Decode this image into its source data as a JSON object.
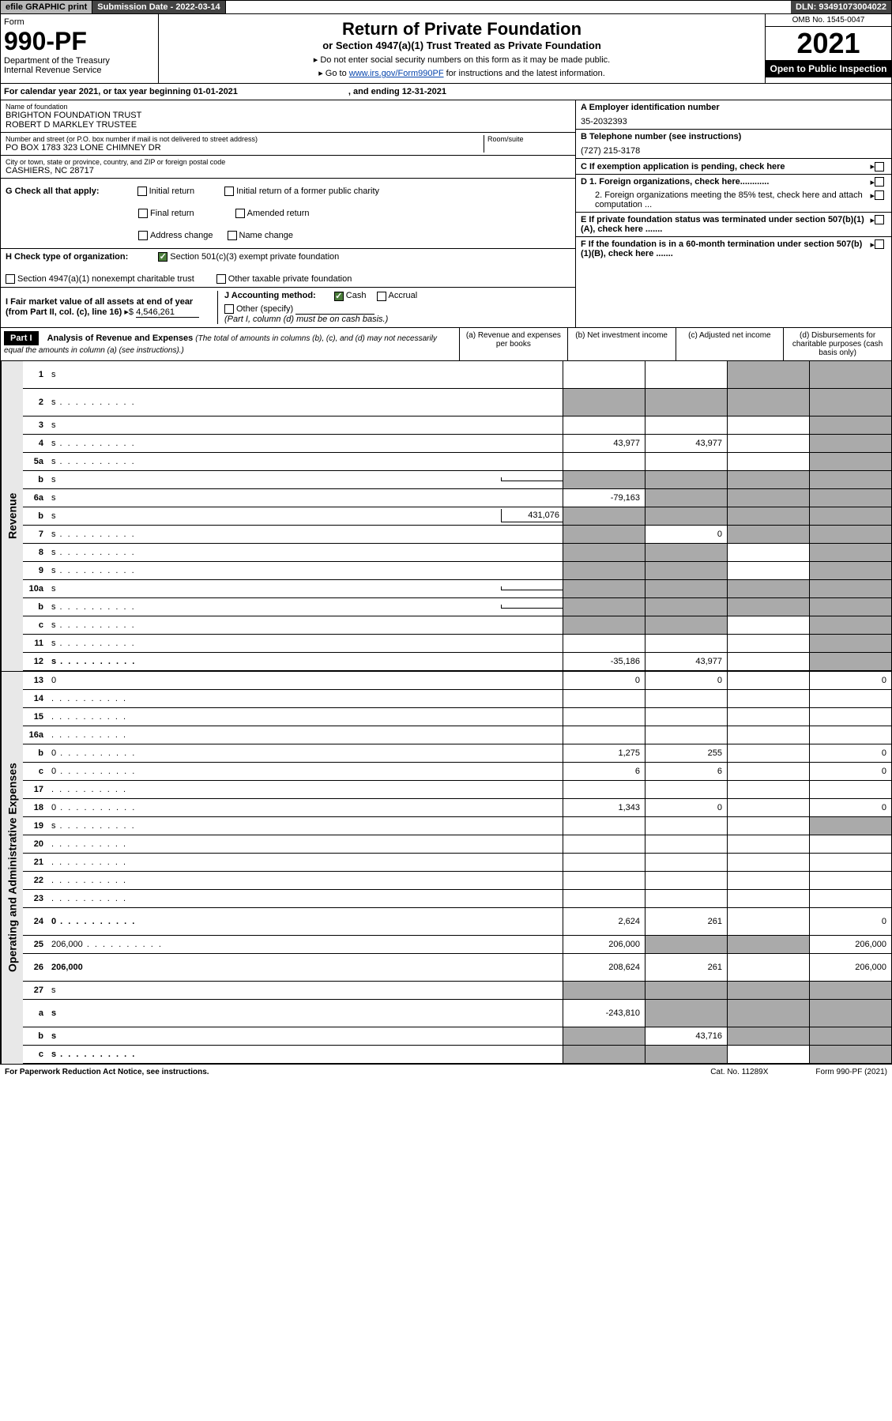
{
  "topBar": {
    "efile": "efile GRAPHIC print",
    "subDate": "Submission Date - 2022-03-14",
    "dln": "DLN: 93491073004022"
  },
  "header": {
    "formWord": "Form",
    "formNum": "990-PF",
    "dept": "Department of the Treasury",
    "irs": "Internal Revenue Service",
    "title": "Return of Private Foundation",
    "subtitle": "or Section 4947(a)(1) Trust Treated as Private Foundation",
    "note1": "▸ Do not enter social security numbers on this form as it may be made public.",
    "note2": "▸ Go to www.irs.gov/Form990PF for instructions and the latest information.",
    "omb": "OMB No. 1545-0047",
    "year": "2021",
    "openPublic": "Open to Public Inspection"
  },
  "calYear": {
    "text": "For calendar year 2021, or tax year beginning 01-01-2021",
    "ending": ", and ending 12-31-2021"
  },
  "info": {
    "nameLabel": "Name of foundation",
    "name1": "BRIGHTON FOUNDATION TRUST",
    "name2": "ROBERT D MARKLEY TRUSTEE",
    "addrLabel": "Number and street (or P.O. box number if mail is not delivered to street address)",
    "addr": "PO BOX 1783 323 LONE CHIMNEY DR",
    "roomLabel": "Room/suite",
    "cityLabel": "City or town, state or province, country, and ZIP or foreign postal code",
    "city": "CASHIERS, NC  28717",
    "einLabel": "A Employer identification number",
    "ein": "35-2032393",
    "telLabel": "B Telephone number (see instructions)",
    "tel": "(727) 215-3178",
    "cLabel": "C If exemption application is pending, check here",
    "d1": "D 1. Foreign organizations, check here............",
    "d2": "2. Foreign organizations meeting the 85% test, check here and attach computation ...",
    "eLabel": "E  If private foundation status was terminated under section 507(b)(1)(A), check here .......",
    "fLabel": "F  If the foundation is in a 60-month termination under section 507(b)(1)(B), check here ......."
  },
  "checks": {
    "gLabel": "G Check all that apply:",
    "initial": "Initial return",
    "initialFormer": "Initial return of a former public charity",
    "final": "Final return",
    "amended": "Amended return",
    "addrChange": "Address change",
    "nameChange": "Name change",
    "hLabel": "H Check type of organization:",
    "h501c3": "Section 501(c)(3) exempt private foundation",
    "h4947": "Section 4947(a)(1) nonexempt charitable trust",
    "hOther": "Other taxable private foundation",
    "iLabel": "I Fair market value of all assets at end of year (from Part II, col. (c), line 16)",
    "iVal": "4,546,261",
    "jLabel": "J Accounting method:",
    "cash": "Cash",
    "accrual": "Accrual",
    "otherSpec": "Other (specify)",
    "jNote": "(Part I, column (d) must be on cash basis.)"
  },
  "partI": {
    "label": "Part I",
    "title": "Analysis of Revenue and Expenses",
    "titleNote": "(The total of amounts in columns (b), (c), and (d) may not necessarily equal the amounts in column (a) (see instructions).)",
    "colA": "(a)   Revenue and expenses per books",
    "colB": "(b)   Net investment income",
    "colC": "(c)   Adjusted net income",
    "colD": "(d)   Disbursements for charitable purposes (cash basis only)"
  },
  "sideLabels": {
    "revenue": "Revenue",
    "expenses": "Operating and Administrative Expenses"
  },
  "rows": [
    {
      "n": "1",
      "d": "s",
      "a": "",
      "b": "",
      "c": "s",
      "tall": true
    },
    {
      "n": "2",
      "d": "s",
      "a": "s",
      "b": "s",
      "c": "s",
      "dots": true,
      "tall": true
    },
    {
      "n": "3",
      "d": "s",
      "a": "",
      "b": "",
      "c": ""
    },
    {
      "n": "4",
      "d": "s",
      "a": "43,977",
      "b": "43,977",
      "c": "",
      "dots": true
    },
    {
      "n": "5a",
      "d": "s",
      "a": "",
      "b": "",
      "c": "",
      "dots": true
    },
    {
      "n": "b",
      "d": "s",
      "a": "s",
      "b": "s",
      "c": "s",
      "sub": ""
    },
    {
      "n": "6a",
      "d": "s",
      "a": "-79,163",
      "b": "s",
      "c": "s"
    },
    {
      "n": "b",
      "d": "s",
      "a": "s",
      "b": "s",
      "c": "s",
      "sub": "431,076"
    },
    {
      "n": "7",
      "d": "s",
      "a": "s",
      "b": "0",
      "c": "s",
      "dots": true
    },
    {
      "n": "8",
      "d": "s",
      "a": "s",
      "b": "s",
      "c": "",
      "dots": true
    },
    {
      "n": "9",
      "d": "s",
      "a": "s",
      "b": "s",
      "c": "",
      "dots": true
    },
    {
      "n": "10a",
      "d": "s",
      "a": "s",
      "b": "s",
      "c": "s",
      "sub": ""
    },
    {
      "n": "b",
      "d": "s",
      "a": "s",
      "b": "s",
      "c": "s",
      "sub": "",
      "dots": true
    },
    {
      "n": "c",
      "d": "s",
      "a": "s",
      "b": "s",
      "c": "",
      "dots": true
    },
    {
      "n": "11",
      "d": "s",
      "a": "",
      "b": "",
      "c": "",
      "dots": true
    },
    {
      "n": "12",
      "d": "s",
      "a": "-35,186",
      "b": "43,977",
      "c": "",
      "dots": true,
      "bold": true
    },
    {
      "n": "13",
      "d": "0",
      "a": "0",
      "b": "0",
      "c": "",
      "sec": "exp"
    },
    {
      "n": "14",
      "d": "",
      "a": "",
      "b": "",
      "c": "",
      "dots": true,
      "sec": "exp"
    },
    {
      "n": "15",
      "d": "",
      "a": "",
      "b": "",
      "c": "",
      "dots": true,
      "sec": "exp"
    },
    {
      "n": "16a",
      "d": "",
      "a": "",
      "b": "",
      "c": "",
      "dots": true,
      "sec": "exp"
    },
    {
      "n": "b",
      "d": "0",
      "a": "1,275",
      "b": "255",
      "c": "",
      "dots": true,
      "sec": "exp"
    },
    {
      "n": "c",
      "d": "0",
      "a": "6",
      "b": "6",
      "c": "",
      "dots": true,
      "sec": "exp"
    },
    {
      "n": "17",
      "d": "",
      "a": "",
      "b": "",
      "c": "",
      "dots": true,
      "sec": "exp"
    },
    {
      "n": "18",
      "d": "0",
      "a": "1,343",
      "b": "0",
      "c": "",
      "dots": true,
      "sec": "exp"
    },
    {
      "n": "19",
      "d": "s",
      "a": "",
      "b": "",
      "c": "",
      "dots": true,
      "sec": "exp"
    },
    {
      "n": "20",
      "d": "",
      "a": "",
      "b": "",
      "c": "",
      "dots": true,
      "sec": "exp"
    },
    {
      "n": "21",
      "d": "",
      "a": "",
      "b": "",
      "c": "",
      "dots": true,
      "sec": "exp"
    },
    {
      "n": "22",
      "d": "",
      "a": "",
      "b": "",
      "c": "",
      "dots": true,
      "sec": "exp"
    },
    {
      "n": "23",
      "d": "",
      "a": "",
      "b": "",
      "c": "",
      "dots": true,
      "sec": "exp"
    },
    {
      "n": "24",
      "d": "0",
      "a": "2,624",
      "b": "261",
      "c": "",
      "dots": true,
      "sec": "exp",
      "bold": true,
      "tall": true
    },
    {
      "n": "25",
      "d": "206,000",
      "a": "206,000",
      "b": "s",
      "c": "s",
      "dots": true,
      "sec": "exp"
    },
    {
      "n": "26",
      "d": "206,000",
      "a": "208,624",
      "b": "261",
      "c": "",
      "sec": "exp",
      "bold": true,
      "tall": true
    },
    {
      "n": "27",
      "d": "s",
      "a": "s",
      "b": "s",
      "c": "s",
      "sec": "exp"
    },
    {
      "n": "a",
      "d": "s",
      "a": "-243,810",
      "b": "s",
      "c": "s",
      "sec": "exp",
      "bold": true,
      "tall": true
    },
    {
      "n": "b",
      "d": "s",
      "a": "s",
      "b": "43,716",
      "c": "s",
      "sec": "exp",
      "bold": true
    },
    {
      "n": "c",
      "d": "s",
      "a": "s",
      "b": "s",
      "c": "",
      "dots": true,
      "sec": "exp",
      "bold": true
    }
  ],
  "footer": {
    "left": "For Paperwork Reduction Act Notice, see instructions.",
    "cat": "Cat. No. 11289X",
    "form": "Form 990-PF (2021)"
  },
  "colors": {
    "shaded": "#aaaaaa",
    "headerBg": "#000000",
    "link": "#0645ad"
  }
}
